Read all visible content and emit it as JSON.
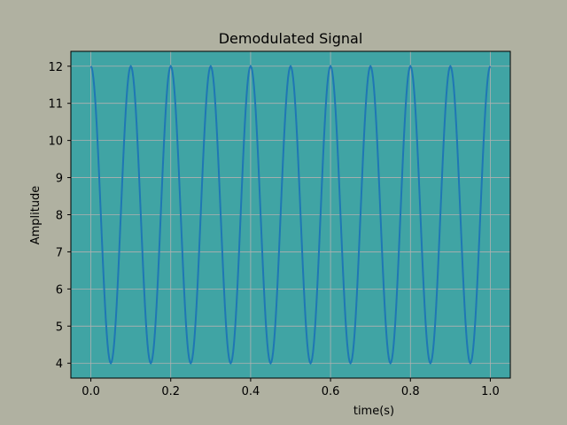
{
  "chart_data": {
    "type": "line",
    "title": "Demodulated Signal",
    "xlabel": "time(s)",
    "ylabel": "Amplitude",
    "xlim": [
      -0.05,
      1.05
    ],
    "ylim": [
      3.6,
      12.4
    ],
    "xticks": [
      0.0,
      0.2,
      0.4,
      0.6,
      0.8,
      1.0
    ],
    "xtick_labels": [
      "0.0",
      "0.2",
      "0.4",
      "0.6",
      "0.8",
      "1.0"
    ],
    "yticks": [
      4,
      5,
      6,
      7,
      8,
      9,
      10,
      11,
      12
    ],
    "ytick_labels": [
      "4",
      "5",
      "6",
      "7",
      "8",
      "9",
      "10",
      "11",
      "12"
    ],
    "grid": true,
    "series": [
      {
        "x": [
          0.0,
          0.05,
          0.1,
          0.15,
          0.2,
          0.25,
          0.3,
          0.35,
          0.4,
          0.45,
          0.5,
          0.55,
          0.6,
          0.65,
          0.7,
          0.75,
          0.8,
          0.85,
          0.9,
          0.95,
          1.0
        ],
        "y": [
          12,
          4,
          12,
          4,
          12,
          4,
          12,
          4,
          12,
          4,
          12,
          4,
          12,
          4,
          12,
          4,
          12,
          4,
          12,
          4,
          12
        ],
        "shape": "cosine",
        "color": "#1f77b4"
      }
    ],
    "colors": {
      "figure_bg": "#b0b1a1",
      "plot_bg": "#40a4a4",
      "grid": "#b0b0b0",
      "line": "#1f77b4"
    }
  }
}
